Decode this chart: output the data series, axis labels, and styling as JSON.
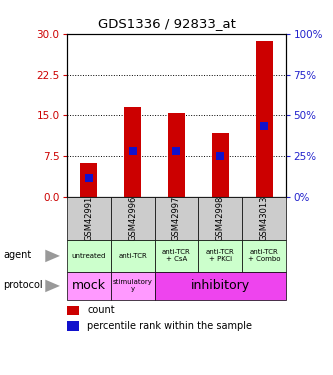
{
  "title": "GDS1336 / 92833_at",
  "samples": [
    "GSM42991",
    "GSM42996",
    "GSM42997",
    "GSM42998",
    "GSM43013"
  ],
  "counts": [
    6.3,
    16.5,
    15.5,
    11.8,
    28.7
  ],
  "percentile_ranks_left": [
    3.5,
    8.5,
    8.5,
    7.5,
    13.0
  ],
  "left_ylim": [
    0,
    30
  ],
  "left_yticks": [
    0,
    7.5,
    15,
    22.5,
    30
  ],
  "right_ylim": [
    0,
    100
  ],
  "right_yticks": [
    0,
    25,
    50,
    75,
    100
  ],
  "bar_color": "#cc0000",
  "pct_color": "#1111cc",
  "left_tick_color": "#cc0000",
  "right_tick_color": "#2222cc",
  "agent_labels": [
    "untreated",
    "anti-TCR",
    "anti-TCR\n+ CsA",
    "anti-TCR\n+ PKCi",
    "anti-TCR\n+ Combo"
  ],
  "agent_bg": "#ccffcc",
  "protocol_mock_label": "mock",
  "protocol_stim_label": "stimulatory\ny",
  "protocol_inhibitory_label": "inhibitory",
  "protocol_bg_light": "#ff99ff",
  "protocol_bg_bright": "#ee44ee",
  "sample_header_bg": "#cccccc",
  "legend_count_color": "#cc0000",
  "legend_pct_color": "#1111cc",
  "bar_width": 0.4,
  "pct_marker_size": 6
}
